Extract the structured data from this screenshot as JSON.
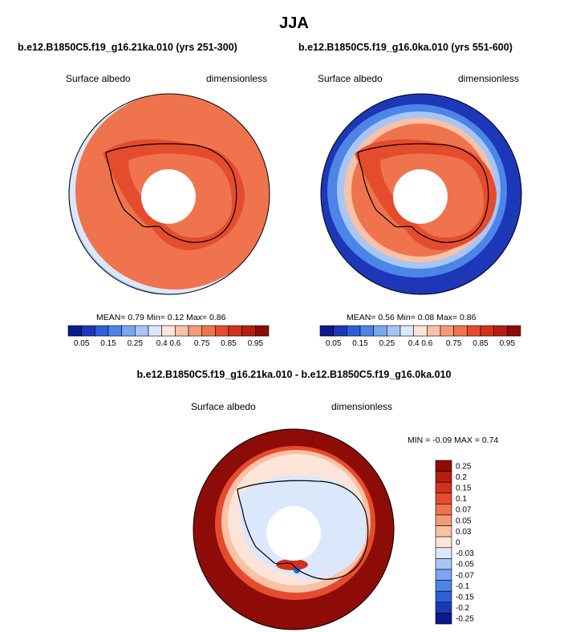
{
  "page": {
    "title": "JJA",
    "panel1_title": "b.e12.B1850C5.f19_g16.21ka.010 (yrs 251-300)",
    "panel2_title": "b.e12.B1850C5.f19_g16.0ka.010 (yrs 551-600)",
    "diff_title": "b.e12.B1850C5.f19_g16.21ka.010 - b.e12.B1850C5.f19_g16.0ka.010"
  },
  "chart_data": [
    {
      "type": "heatmap",
      "projection": "south-polar-stereographic",
      "title": "b.e12.B1850C5.f19_g16.21ka.010 (yrs 251-300)",
      "variable_label": "Surface albedo",
      "units_label": "dimensionless",
      "stats": {
        "mean_label": "MEAN=",
        "mean": "0.79",
        "min_label": "Min=",
        "min": "0.12",
        "max_label": "Max=",
        "max": "0.86"
      },
      "colorbar": {
        "ticks": [
          "0.05",
          "0.15",
          "0.25",
          "0.4",
          "0.6",
          "0.75",
          "0.85",
          "0.95"
        ],
        "colors": [
          "#0c1a8a",
          "#1c37b8",
          "#2d5fd8",
          "#4d84e8",
          "#78a6ef",
          "#a7c6f4",
          "#dbe8fb",
          "#fde4d8",
          "#f9c1a6",
          "#f59a76",
          "#ef744e",
          "#e54c2d",
          "#d2311d",
          "#b51f12",
          "#8e0c08"
        ]
      }
    },
    {
      "type": "heatmap",
      "projection": "south-polar-stereographic",
      "title": "b.e12.B1850C5.f19_g16.0ka.010 (yrs 551-600)",
      "variable_label": "Surface albedo",
      "units_label": "dimensionless",
      "stats": {
        "mean_label": "MEAN=",
        "mean": "0.56",
        "min_label": "Min=",
        "min": "0.08",
        "max_label": "Max=",
        "max": "0.86"
      },
      "colorbar": {
        "ticks": [
          "0.05",
          "0.15",
          "0.25",
          "0.4",
          "0.6",
          "0.75",
          "0.85",
          "0.95"
        ],
        "colors": [
          "#0c1a8a",
          "#1c37b8",
          "#2d5fd8",
          "#4d84e8",
          "#78a6ef",
          "#a7c6f4",
          "#dbe8fb",
          "#fde4d8",
          "#f9c1a6",
          "#f59a76",
          "#ef744e",
          "#e54c2d",
          "#d2311d",
          "#b51f12",
          "#8e0c08"
        ]
      }
    },
    {
      "type": "heatmap",
      "projection": "south-polar-stereographic",
      "title": "b.e12.B1850C5.f19_g16.21ka.010 - b.e12.B1850C5.f19_g16.0ka.010",
      "variable_label": "Surface albedo",
      "units_label": "dimensionless",
      "stats": {
        "min_label": "MIN =",
        "min": "-0.09",
        "max_label": "MAX =",
        "max": "0.74"
      },
      "colorbar": {
        "ticks": [
          "0.25",
          "0.2",
          "0.15",
          "0.1",
          "0.07",
          "0.05",
          "0.03",
          "0",
          "-0.03",
          "-0.05",
          "-0.07",
          "-0.1",
          "-0.15",
          "-0.2",
          "-0.25"
        ],
        "colors": [
          "#8e0c08",
          "#b51f12",
          "#d2311d",
          "#e54c2d",
          "#ef744e",
          "#f59a76",
          "#f9c1a6",
          "#fde4d8",
          "#dbe8fb",
          "#a7c6f4",
          "#78a6ef",
          "#4d84e8",
          "#2d5fd8",
          "#1c37b8",
          "#0c1a8a"
        ]
      }
    }
  ]
}
